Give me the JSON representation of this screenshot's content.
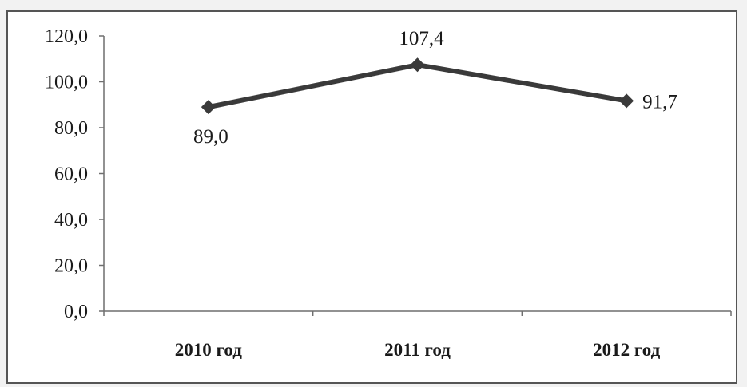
{
  "chart_data": {
    "type": "line",
    "title": "",
    "xlabel": "",
    "ylabel": "",
    "categories": [
      "2010 год",
      "2011 год",
      "2012 год"
    ],
    "series": [
      {
        "values": [
          89.0,
          107.4,
          91.7
        ],
        "labels": [
          "89,0",
          "107,4",
          "91,7"
        ],
        "color": "#3a3a3a",
        "marker": "diamond"
      }
    ],
    "ylim": [
      0,
      120
    ],
    "yticks": [
      0,
      20,
      40,
      60,
      80,
      100,
      120
    ],
    "ytick_labels": [
      "0,0",
      "20,0",
      "40,0",
      "60,0",
      "80,0",
      "100,0",
      "120,0"
    ],
    "grid": false,
    "legend": "none"
  }
}
